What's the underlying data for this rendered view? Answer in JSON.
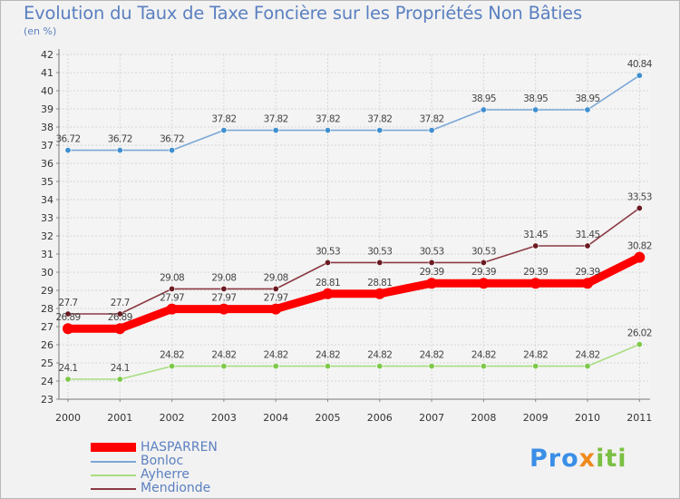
{
  "chart_data": {
    "type": "line",
    "title": "Evolution du Taux de Taxe Foncière sur les Propriétés Non Bâties",
    "subtitle": "(en %)",
    "xlabel": "",
    "ylabel": "(en %)",
    "ylim": [
      23,
      42
    ],
    "yticks": [
      23,
      24,
      25,
      26,
      27,
      28,
      29,
      30,
      31,
      32,
      33,
      34,
      35,
      36,
      37,
      38,
      39,
      40,
      41,
      42
    ],
    "grid": true,
    "categories": [
      "2000",
      "2001",
      "2002",
      "2003",
      "2004",
      "2005",
      "2006",
      "2007",
      "2008",
      "2009",
      "2010",
      "2011"
    ],
    "series": [
      {
        "name": "Bonloc",
        "color": "#7ba7d6",
        "marker_color": "#3f8fd0",
        "values": [
          36.72,
          36.72,
          36.72,
          37.82,
          37.82,
          37.82,
          37.82,
          37.82,
          38.95,
          38.95,
          38.95,
          40.84
        ],
        "labels": [
          "36.72",
          "36.72",
          "36.72",
          "37.82",
          "37.82",
          "37.82",
          "37.82",
          "37.82",
          "38.95",
          "38.95",
          "38.95",
          "40.84"
        ]
      },
      {
        "name": "Mendionde",
        "color": "#8b3a44",
        "marker_color": "#6b1a22",
        "values": [
          27.7,
          27.7,
          29.08,
          29.08,
          29.08,
          30.53,
          30.53,
          30.53,
          30.53,
          31.45,
          31.45,
          33.53
        ],
        "labels": [
          "27.7",
          "27.7",
          "29.08",
          "29.08",
          "29.08",
          "30.53",
          "30.53",
          "30.53",
          "30.53",
          "31.45",
          "31.45",
          "33.53"
        ]
      },
      {
        "name": "Ayherre",
        "color": "#a8dd80",
        "marker_color": "#7ec84a",
        "values": [
          24.1,
          24.1,
          24.82,
          24.82,
          24.82,
          24.82,
          24.82,
          24.82,
          24.82,
          24.82,
          24.82,
          26.02
        ],
        "labels": [
          "24.1",
          "24.1",
          "24.82",
          "24.82",
          "24.82",
          "24.82",
          "24.82",
          "24.82",
          "24.82",
          "24.82",
          "24.82",
          "26.02"
        ]
      },
      {
        "name": "HASPARREN",
        "color": "#ff0000",
        "marker_color": "#ff0000",
        "values": [
          26.89,
          26.89,
          27.97,
          27.97,
          27.97,
          28.81,
          28.81,
          29.39,
          29.39,
          29.39,
          29.39,
          30.82
        ],
        "labels": [
          "26.89",
          "26.89",
          "27.97",
          "27.97",
          "27.97",
          "28.81",
          "28.81",
          "29.39",
          "29.39",
          "29.39",
          "29.39",
          "30.82"
        ]
      }
    ],
    "legend": [
      "HASPARREN",
      "Bonloc",
      "Ayherre",
      "Mendionde"
    ]
  },
  "legend": {
    "items": [
      {
        "label": "HASPARREN",
        "color": "#ff0000"
      },
      {
        "label": "Bonloc",
        "color": "#7ba7d6"
      },
      {
        "label": "Ayherre",
        "color": "#a8dd80"
      },
      {
        "label": "Mendionde",
        "color": "#8b3a44"
      }
    ]
  },
  "brand": {
    "parts": [
      {
        "text": "Pro",
        "color": "#3a8ee6"
      },
      {
        "text": "x",
        "color": "#f08a1c"
      },
      {
        "text": "iti",
        "color": "#7ac043"
      }
    ]
  }
}
